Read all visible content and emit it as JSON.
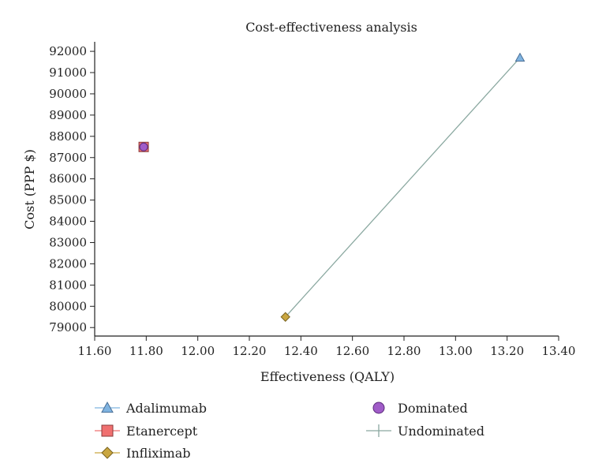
{
  "chart_data": {
    "type": "scatter",
    "title": "Cost-effectiveness analysis",
    "xlabel": "Effectiveness (QALY)",
    "ylabel": "Cost (PPP $)",
    "xlim": [
      11.6,
      13.4
    ],
    "ylim": [
      78600,
      92300
    ],
    "x_ticks": [
      "11.60",
      "11.80",
      "12.00",
      "12.20",
      "12.40",
      "12.60",
      "12.80",
      "13.00",
      "13.20",
      "13.40"
    ],
    "x_tick_values": [
      11.6,
      11.8,
      12.0,
      12.2,
      12.4,
      12.6,
      12.8,
      13.0,
      13.2,
      13.4
    ],
    "y_ticks": [
      "79000",
      "80000",
      "81000",
      "82000",
      "83000",
      "84000",
      "85000",
      "86000",
      "87000",
      "88000",
      "89000",
      "90000",
      "91000",
      "92000"
    ],
    "y_tick_values": [
      79000,
      80000,
      81000,
      82000,
      83000,
      84000,
      85000,
      86000,
      87000,
      88000,
      89000,
      90000,
      91000,
      92000
    ],
    "series": [
      {
        "name": "Adalimumab",
        "marker": "triangle",
        "color": "#7fb3e0",
        "points": [
          {
            "x": 13.25,
            "y": 91700
          }
        ]
      },
      {
        "name": "Etanercept",
        "marker": "square",
        "color": "#f07070",
        "points": [
          {
            "x": 11.79,
            "y": 87500
          }
        ]
      },
      {
        "name": "Infliximab",
        "marker": "diamond",
        "color": "#c9a640",
        "points": [
          {
            "x": 12.34,
            "y": 79500
          }
        ]
      },
      {
        "name": "Dominated",
        "marker": "circle",
        "color": "#a05cc8",
        "points": [
          {
            "x": 11.79,
            "y": 87500
          }
        ]
      }
    ],
    "lines": [
      {
        "name": "Undominated",
        "color": "#8aa8a0",
        "points": [
          {
            "x": 12.34,
            "y": 79500
          },
          {
            "x": 13.25,
            "y": 91700
          }
        ]
      }
    ],
    "legend": [
      {
        "label": "Adalimumab",
        "marker": "triangle",
        "color": "#7fb3e0"
      },
      {
        "label": "Dominated",
        "marker": "circle",
        "color": "#a05cc8"
      },
      {
        "label": "Etanercept",
        "marker": "square",
        "color": "#f07070"
      },
      {
        "label": "Undominated",
        "marker": "plus",
        "color": "#8aa8a0"
      },
      {
        "label": "Infliximab",
        "marker": "diamond",
        "color": "#c9a640"
      }
    ],
    "legend_position": "bottom",
    "grid": false
  }
}
